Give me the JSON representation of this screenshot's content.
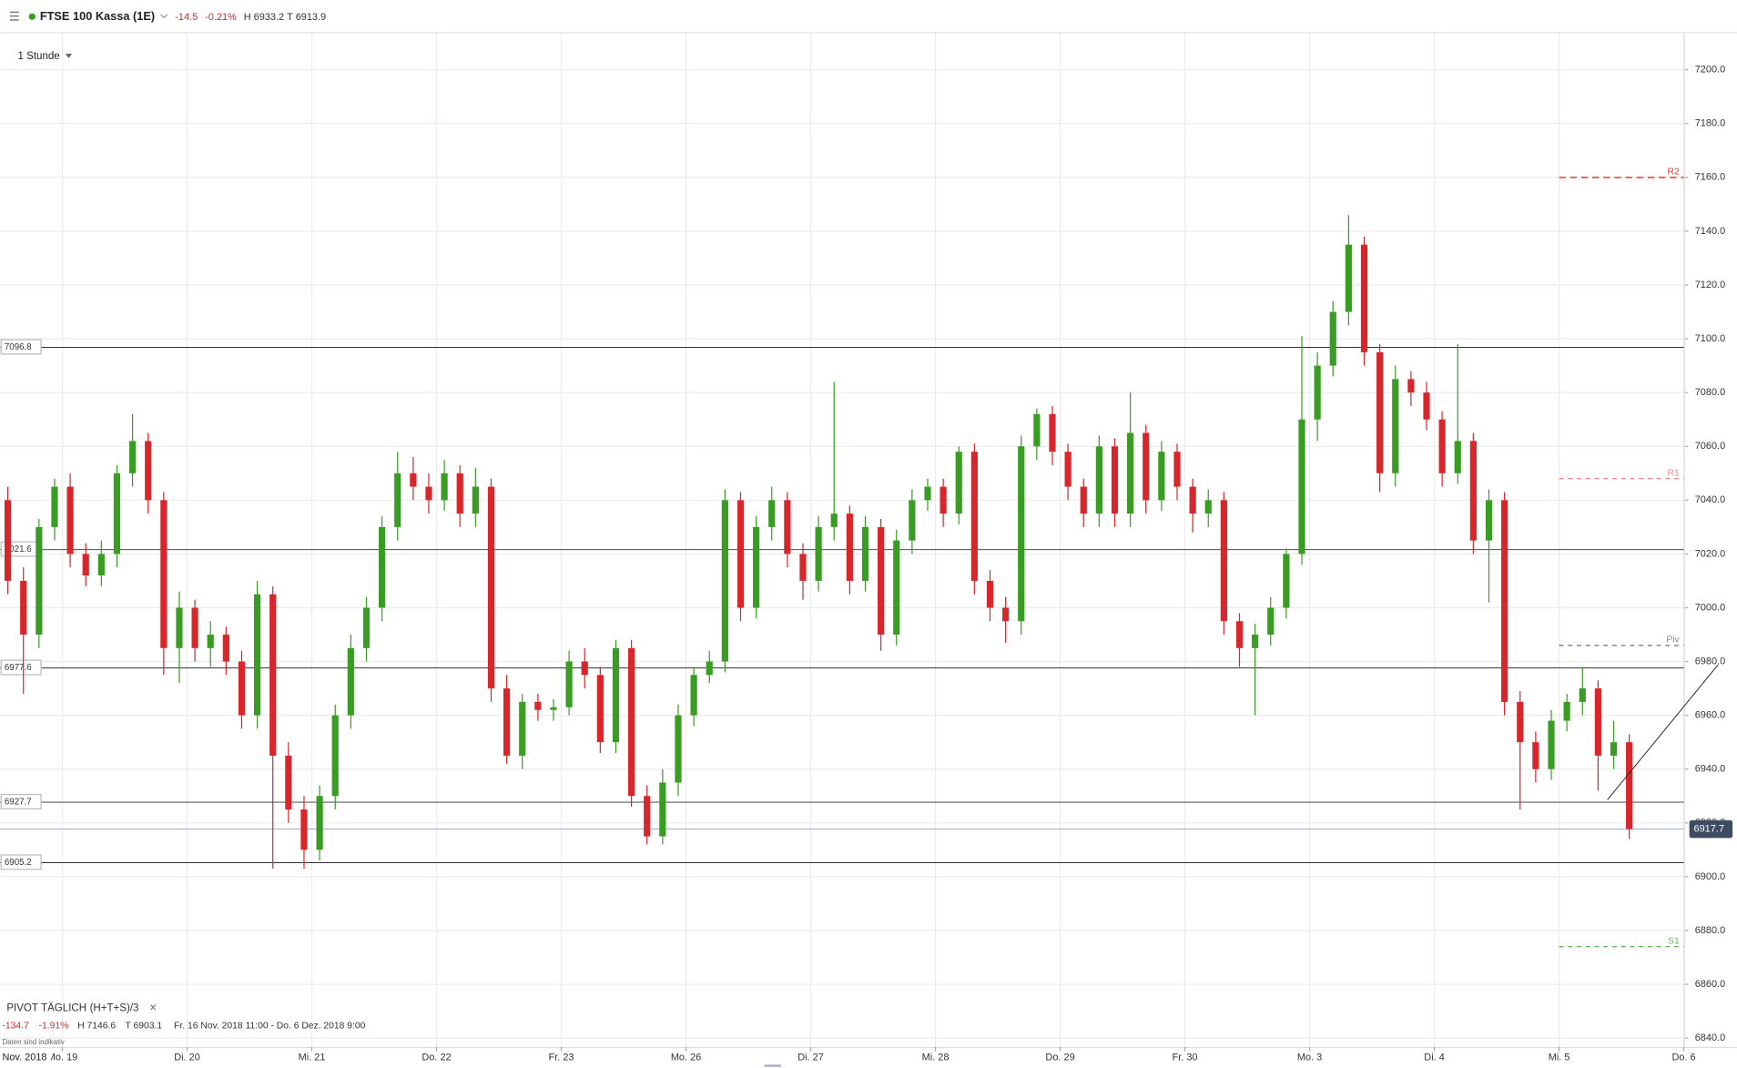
{
  "header": {
    "instrument": "FTSE 100 Kassa (1E)",
    "change": "-14.5",
    "change_pct": "-0.21%",
    "high": "H 6933.2",
    "low": "T 6913.9",
    "interval": "1 Stunde"
  },
  "footer": {
    "indicator": "PIVOT",
    "period": "TÄGLICH",
    "formula": "(H+T+S)/3",
    "close": "×",
    "range_change": "-134.7",
    "range_change_pct": "-1.91%",
    "range_high": "H 7146.6",
    "range_low": "T 6903.1",
    "range": "Fr. 16 Nov. 2018 11:00 - Do. 6 Dez. 2018 9:00",
    "note": "Daten sind indikativ",
    "month": "Nov. 2018"
  },
  "chart_data": {
    "type": "candlestick",
    "up_color": "#3a9d23",
    "down_color": "#d9262b",
    "xlim": [
      -0.5,
      107.5
    ],
    "xticks": [
      {
        "value": 3.5,
        "label": "Mo. 19"
      },
      {
        "value": 11.5,
        "label": "Di. 20"
      },
      {
        "value": 19.5,
        "label": "Mi. 21"
      },
      {
        "value": 27.5,
        "label": "Do. 22"
      },
      {
        "value": 35.5,
        "label": "Fr. 23"
      },
      {
        "value": 43.5,
        "label": "Mo. 26"
      },
      {
        "value": 51.5,
        "label": "Di. 27"
      },
      {
        "value": 59.5,
        "label": "Mi. 28"
      },
      {
        "value": 67.5,
        "label": "Do. 29"
      },
      {
        "value": 75.5,
        "label": "Fr. 30"
      },
      {
        "value": 83.5,
        "label": "Mo. 3"
      },
      {
        "value": 91.5,
        "label": "Di. 4"
      },
      {
        "value": 99.5,
        "label": "Mi. 5"
      },
      {
        "value": 107.5,
        "label": "Do. 6"
      }
    ],
    "ylim": [
      6836.7,
      7213.6
    ],
    "yticks": [
      {
        "value": 6840,
        "label": "6840.0"
      },
      {
        "value": 6860,
        "label": "6860.0"
      },
      {
        "value": 6880,
        "label": "6880.0"
      },
      {
        "value": 6900,
        "label": "6900.0"
      },
      {
        "value": 6920,
        "label": "6920.0"
      },
      {
        "value": 6940,
        "label": "6940.0"
      },
      {
        "value": 6960,
        "label": "6960.0"
      },
      {
        "value": 6980,
        "label": "6980.0"
      },
      {
        "value": 7000,
        "label": "7000.0"
      },
      {
        "value": 7020,
        "label": "7020.0"
      },
      {
        "value": 7040,
        "label": "7040.0"
      },
      {
        "value": 7060,
        "label": "7060.0"
      },
      {
        "value": 7080,
        "label": "7080.0"
      },
      {
        "value": 7100,
        "label": "7100.0"
      },
      {
        "value": 7120,
        "label": "7120.0"
      },
      {
        "value": 7140,
        "label": "7140.0"
      },
      {
        "value": 7160,
        "label": "7160.0"
      },
      {
        "value": 7180,
        "label": "7180.0"
      },
      {
        "value": 7200,
        "label": "7200.0"
      }
    ],
    "grid": true,
    "levels": [
      7096.8,
      7021.6,
      6977.6,
      6927.7,
      6905.2
    ],
    "last_price": 6917.7,
    "pivots": [
      {
        "name": "R2",
        "value": 7160,
        "color": "#e53935",
        "dash": "6,4"
      },
      {
        "name": "R1",
        "value": 7048,
        "color": "#ef8a8a",
        "dash": "4,4"
      },
      {
        "name": "Piv",
        "value": 6986,
        "color": "#888888",
        "dash": "4,4"
      },
      {
        "name": "S1",
        "value": 6874,
        "color": "#5fb85a",
        "dash": "4,4"
      }
    ],
    "trendline": [
      [
        102.6,
        6928.6
      ],
      [
        109.7,
        6978.8
      ]
    ],
    "ohlc": [
      [
        7040,
        7045,
        7005,
        7010
      ],
      [
        7010,
        7015,
        6968,
        6990
      ],
      [
        6990,
        7033,
        6985,
        7030
      ],
      [
        7030,
        7048,
        7025,
        7045
      ],
      [
        7045,
        7050,
        7015,
        7020
      ],
      [
        7020,
        7024,
        7008,
        7012
      ],
      [
        7012,
        7025,
        7008,
        7020
      ],
      [
        7020,
        7053,
        7015,
        7050
      ],
      [
        7050,
        7072,
        7045,
        7062
      ],
      [
        7062,
        7065,
        7035,
        7040
      ],
      [
        7040,
        7043,
        6975,
        6985
      ],
      [
        6985,
        7006,
        6972,
        7000
      ],
      [
        7000,
        7003,
        6980,
        6985
      ],
      [
        6985,
        6995,
        6978,
        6990
      ],
      [
        6990,
        6993,
        6975,
        6980
      ],
      [
        6980,
        6984,
        6955,
        6960
      ],
      [
        6960,
        7010,
        6955,
        7005
      ],
      [
        7005,
        7008,
        6903,
        6945
      ],
      [
        6945,
        6950,
        6920,
        6925
      ],
      [
        6925,
        6930,
        6903,
        6910
      ],
      [
        6910,
        6934,
        6906,
        6930
      ],
      [
        6930,
        6964,
        6925,
        6960
      ],
      [
        6960,
        6990,
        6955,
        6985
      ],
      [
        6985,
        7004,
        6980,
        7000
      ],
      [
        7000,
        7034,
        6995,
        7030
      ],
      [
        7030,
        7058,
        7025,
        7050
      ],
      [
        7050,
        7056,
        7040,
        7045
      ],
      [
        7045,
        7050,
        7035,
        7040
      ],
      [
        7040,
        7055,
        7036,
        7050
      ],
      [
        7050,
        7053,
        7030,
        7035
      ],
      [
        7035,
        7052,
        7030,
        7045
      ],
      [
        7045,
        7048,
        6965,
        6970
      ],
      [
        6970,
        6975,
        6942,
        6945
      ],
      [
        6945,
        6968,
        6940,
        6965
      ],
      [
        6965,
        6968,
        6958,
        6962
      ],
      [
        6962,
        6966,
        6958,
        6963
      ],
      [
        6963,
        6984,
        6960,
        6980
      ],
      [
        6980,
        6985,
        6970,
        6975
      ],
      [
        6975,
        6978,
        6946,
        6950
      ],
      [
        6950,
        6988,
        6946,
        6985
      ],
      [
        6985,
        6988,
        6926,
        6930
      ],
      [
        6930,
        6934,
        6912,
        6915
      ],
      [
        6915,
        6940,
        6912,
        6935
      ],
      [
        6935,
        6964,
        6930,
        6960
      ],
      [
        6960,
        6978,
        6956,
        6975
      ],
      [
        6975,
        6984,
        6972,
        6980
      ],
      [
        6980,
        7044,
        6976,
        7040
      ],
      [
        7040,
        7043,
        6995,
        7000
      ],
      [
        7000,
        7034,
        6996,
        7030
      ],
      [
        7030,
        7045,
        7025,
        7040
      ],
      [
        7040,
        7043,
        7015,
        7020
      ],
      [
        7020,
        7024,
        7003,
        7010
      ],
      [
        7010,
        7034,
        7006,
        7030
      ],
      [
        7030,
        7084,
        7025,
        7035
      ],
      [
        7035,
        7038,
        7005,
        7010
      ],
      [
        7010,
        7034,
        7006,
        7030
      ],
      [
        7030,
        7033,
        6984,
        6990
      ],
      [
        6990,
        7029,
        6986,
        7025
      ],
      [
        7025,
        7044,
        7020,
        7040
      ],
      [
        7040,
        7048,
        7036,
        7045
      ],
      [
        7045,
        7048,
        7030,
        7035
      ],
      [
        7035,
        7060,
        7031,
        7058
      ],
      [
        7058,
        7061,
        7005,
        7010
      ],
      [
        7010,
        7014,
        6995,
        7000
      ],
      [
        7000,
        7004,
        6987,
        6995
      ],
      [
        6995,
        7064,
        6990,
        7060
      ],
      [
        7060,
        7074,
        7055,
        7072
      ],
      [
        7072,
        7075,
        7053,
        7058
      ],
      [
        7058,
        7061,
        7040,
        7045
      ],
      [
        7045,
        7048,
        7030,
        7035
      ],
      [
        7035,
        7064,
        7030,
        7060
      ],
      [
        7060,
        7063,
        7030,
        7035
      ],
      [
        7035,
        7080,
        7030,
        7065
      ],
      [
        7065,
        7068,
        7035,
        7040
      ],
      [
        7040,
        7062,
        7036,
        7058
      ],
      [
        7058,
        7061,
        7040,
        7045
      ],
      [
        7045,
        7048,
        7028,
        7035
      ],
      [
        7035,
        7044,
        7030,
        7040
      ],
      [
        7040,
        7043,
        6990,
        6995
      ],
      [
        6995,
        6998,
        6978,
        6985
      ],
      [
        6985,
        6994,
        6960,
        6990
      ],
      [
        6990,
        7004,
        6986,
        7000
      ],
      [
        7000,
        7022,
        6996,
        7020
      ],
      [
        7020,
        7101,
        7016,
        7070
      ],
      [
        7070,
        7095,
        7062,
        7090
      ],
      [
        7090,
        7114,
        7086,
        7110
      ],
      [
        7110,
        7146,
        7105,
        7135
      ],
      [
        7135,
        7138,
        7090,
        7095
      ],
      [
        7095,
        7098,
        7043,
        7050
      ],
      [
        7050,
        7090,
        7045,
        7085
      ],
      [
        7085,
        7088,
        7075,
        7080
      ],
      [
        7080,
        7084,
        7066,
        7070
      ],
      [
        7070,
        7073,
        7045,
        7050
      ],
      [
        7050,
        7098,
        7046,
        7062
      ],
      [
        7062,
        7065,
        7020,
        7025
      ],
      [
        7025,
        7044,
        7002,
        7040
      ],
      [
        7040,
        7043,
        6960,
        6965
      ],
      [
        6965,
        6969,
        6925,
        6950
      ],
      [
        6950,
        6954,
        6935,
        6940
      ],
      [
        6940,
        6962,
        6936,
        6958
      ],
      [
        6958,
        6968,
        6954,
        6965
      ],
      [
        6965,
        6978,
        6960,
        6970
      ],
      [
        6970,
        6973,
        6932,
        6945
      ],
      [
        6945,
        6958,
        6940,
        6950
      ],
      [
        6950,
        6953,
        6914,
        6917.7
      ]
    ]
  }
}
